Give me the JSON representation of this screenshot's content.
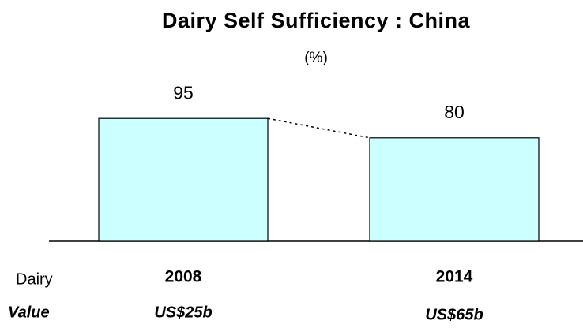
{
  "chart_data": {
    "type": "bar",
    "title": "Dairy Self Sufficiency : China",
    "subtitle": "(%)",
    "categories": [
      "2008",
      "2014"
    ],
    "values": [
      95,
      80
    ],
    "color": "#ccffff",
    "ylim": [
      0,
      100
    ],
    "connector": true,
    "category_row_label": "Dairy",
    "secondary_row_label": "Value",
    "secondary_values": [
      "US$25b",
      "US$65b"
    ]
  }
}
